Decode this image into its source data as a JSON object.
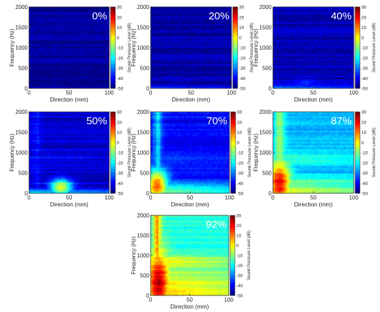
{
  "figure": {
    "xlabel": "Direction (mm)",
    "ylabel": "Frequency (Hz)",
    "colorbar_label": "Sound Pressure Level (dB)"
  },
  "chart_data": [
    {
      "type": "heatmap",
      "annotation": "0%",
      "xlabel": "Direction (mm)",
      "ylabel": "Frequency (Hz)",
      "xlim": [
        0,
        100
      ],
      "ylim": [
        0,
        2000
      ],
      "xticks": [
        "0",
        "50",
        "100"
      ],
      "yticks": [
        "0",
        "500",
        "1000",
        "1500",
        "2000"
      ],
      "colorbar": {
        "label": "Sound Pressure Level (dB)",
        "range": [
          -50,
          30
        ],
        "ticks": [
          "30",
          "20",
          "10",
          "0",
          "-10",
          "-20",
          "-30",
          "-40",
          "-50"
        ]
      },
      "levels": {
        "background_db": -48,
        "low_band_db": -40,
        "low_band_max_hz": 60,
        "hot_spot_db": -48,
        "hot_spot_x": 20,
        "hot_spot_y": 150,
        "vertical_plume_db": -48,
        "mid_band_db": -48
      }
    },
    {
      "type": "heatmap",
      "annotation": "20%",
      "xlabel": "Direction (mm)",
      "ylabel": "Frequency (Hz)",
      "xlim": [
        0,
        100
      ],
      "ylim": [
        0,
        2000
      ],
      "xticks": [
        "0",
        "50",
        "100"
      ],
      "yticks": [
        "0",
        "500",
        "1000",
        "1500",
        "2000"
      ],
      "colorbar": {
        "label": "Sound Pressure Level (dB)",
        "range": [
          -50,
          30
        ],
        "ticks": [
          "30",
          "20",
          "10",
          "0",
          "-10",
          "-20",
          "-30",
          "-40",
          "-50"
        ]
      },
      "levels": {
        "background_db": -47,
        "low_band_db": -36,
        "low_band_max_hz": 80,
        "hot_spot_db": -45,
        "hot_spot_x": 30,
        "hot_spot_y": 120,
        "vertical_plume_db": -47,
        "mid_band_db": -47
      }
    },
    {
      "type": "heatmap",
      "annotation": "40%",
      "xlabel": "Direction (mm)",
      "ylabel": "Frequency (Hz)",
      "xlim": [
        0,
        100
      ],
      "ylim": [
        0,
        2000
      ],
      "xticks": [
        "0",
        "50",
        "100"
      ],
      "yticks": [
        "0",
        "500",
        "1000",
        "1500",
        "2000"
      ],
      "colorbar": {
        "label": "Sound Pressure Level (dB)",
        "range": [
          -50,
          30
        ],
        "ticks": [
          "30",
          "20",
          "10",
          "0",
          "-10",
          "-20",
          "-30",
          "-40",
          "-50"
        ]
      },
      "levels": {
        "background_db": -46,
        "low_band_db": -28,
        "low_band_max_hz": 90,
        "hot_spot_db": -40,
        "hot_spot_x": 40,
        "hot_spot_y": 120,
        "vertical_plume_db": -46,
        "mid_band_db": -46
      }
    },
    {
      "type": "heatmap",
      "annotation": "50%",
      "xlabel": "Direction (mm)",
      "ylabel": "Frequency (Hz)",
      "xlim": [
        0,
        100
      ],
      "ylim": [
        0,
        2000
      ],
      "xticks": [
        "0",
        "50",
        "100"
      ],
      "yticks": [
        "0",
        "500",
        "1000",
        "1500",
        "2000"
      ],
      "colorbar": {
        "label": "Sound Pressure Level (dB)",
        "range": [
          -50,
          30
        ],
        "ticks": [
          "30",
          "20",
          "10",
          "0",
          "-10",
          "-20",
          "-30",
          "-40",
          "-50"
        ]
      },
      "levels": {
        "background_db": -44,
        "low_band_db": -18,
        "low_band_max_hz": 140,
        "hot_spot_db": 0,
        "hot_spot_x": 40,
        "hot_spot_y": 150,
        "vertical_plume_db": -36,
        "mid_band_db": -40
      }
    },
    {
      "type": "heatmap",
      "annotation": "70%",
      "xlabel": "Direction (mm)",
      "ylabel": "Frequency (Hz)",
      "xlim": [
        0,
        100
      ],
      "ylim": [
        0,
        2000
      ],
      "xticks": [
        "0",
        "50",
        "100"
      ],
      "yticks": [
        "0",
        "500",
        "1000",
        "1500",
        "2000"
      ],
      "colorbar": {
        "label": "Sound Pressure Level (dB)",
        "range": [
          -50,
          30
        ],
        "ticks": [
          "30",
          "20",
          "10",
          "0",
          "-10",
          "-20",
          "-30",
          "-40",
          "-50"
        ]
      },
      "levels": {
        "background_db": -40,
        "low_band_db": -8,
        "low_band_max_hz": 350,
        "hot_spot_db": 12,
        "hot_spot_x": 8,
        "hot_spot_y": 200,
        "vertical_plume_db": -20,
        "mid_band_db": -34
      }
    },
    {
      "type": "heatmap",
      "annotation": "87%",
      "xlabel": "Direction (mm)",
      "ylabel": "Frequency (Hz)",
      "xlim": [
        0,
        100
      ],
      "ylim": [
        0,
        2000
      ],
      "xticks": [
        "0",
        "50",
        "100"
      ],
      "yticks": [
        "0",
        "500",
        "1000",
        "1500",
        "2000"
      ],
      "colorbar": {
        "label": "Sound Pressure Level (dB)",
        "range": [
          -50,
          30
        ],
        "ticks": [
          "30",
          "20",
          "10",
          "0",
          "-10",
          "-20",
          "-30",
          "-40",
          "-50"
        ]
      },
      "levels": {
        "background_db": -26,
        "low_band_db": 0,
        "low_band_max_hz": 500,
        "hot_spot_db": 22,
        "hot_spot_x": 8,
        "hot_spot_y": 250,
        "vertical_plume_db": -4,
        "mid_band_db": -16
      }
    },
    {
      "type": "heatmap",
      "annotation": "92%",
      "xlabel": "Direction (mm)",
      "ylabel": "Frequency (Hz)",
      "xlim": [
        0,
        100
      ],
      "ylim": [
        0,
        2000
      ],
      "xticks": [
        "0",
        "50",
        "100"
      ],
      "yticks": [
        "0",
        "500",
        "1000",
        "1500",
        "2000"
      ],
      "colorbar": {
        "label": "Sound Pressure Level (dB)",
        "range": [
          -50,
          30
        ],
        "ticks": [
          "30",
          "20",
          "10",
          "0",
          "-10",
          "-20",
          "-30",
          "-40",
          "-50"
        ]
      },
      "levels": {
        "background_db": -18,
        "low_band_db": 8,
        "low_band_max_hz": 800,
        "hot_spot_db": 26,
        "hot_spot_x": 10,
        "hot_spot_y": 300,
        "vertical_plume_db": 10,
        "mid_band_db": 4
      }
    }
  ]
}
